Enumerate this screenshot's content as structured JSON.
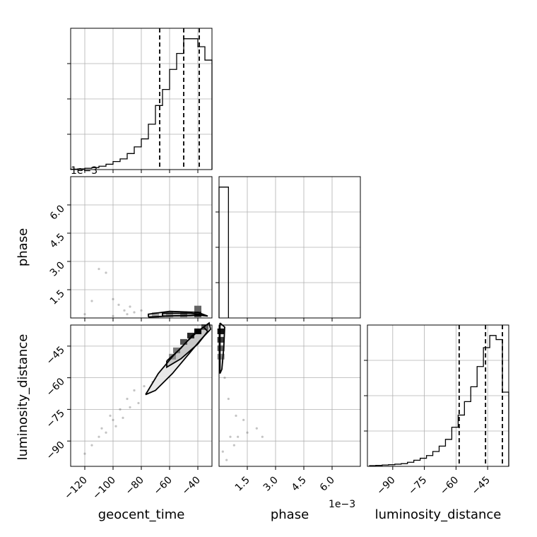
{
  "chart_data": {
    "type": "corner",
    "parameters": [
      "geocent_time",
      "phase",
      "luminosity_distance"
    ],
    "offset_label": "1e−3",
    "grid": true,
    "axes": {
      "geocent_time": {
        "range": [
          -130,
          -30
        ],
        "ticks": [
          -120,
          -100,
          -80,
          -60,
          -40
        ],
        "tick_labels": [
          "−120",
          "−100",
          "−80",
          "−60",
          "−40"
        ]
      },
      "phase": {
        "range": [
          0,
          7.5
        ],
        "ticks": [
          1.5,
          3.0,
          4.5,
          6.0
        ],
        "tick_labels": [
          "1.5",
          "3.0",
          "4.5",
          "6.0"
        ]
      },
      "luminosity_distance": {
        "range": [
          -102,
          -35
        ],
        "ticks": [
          -90,
          -75,
          -60,
          -45
        ],
        "tick_labels": [
          "−90",
          "−75",
          "−60",
          "−45"
        ]
      }
    },
    "histograms": {
      "geocent_time": {
        "bin_edges": [
          -130,
          -125,
          -120,
          -115,
          -110,
          -105,
          -100,
          -95,
          -90,
          -85,
          -80,
          -75,
          -70,
          -65,
          -60,
          -55,
          -50,
          -45,
          -40,
          -35,
          -30
        ],
        "counts": [
          0.3,
          0.5,
          1,
          1.5,
          2.5,
          4,
          6,
          8,
          12,
          17,
          23,
          34,
          48,
          60,
          75,
          87,
          98,
          98,
          92,
          82
        ],
        "quantiles": [
          -67,
          -50,
          -39
        ]
      },
      "phase": {
        "bin_edges": [
          0,
          0.5
        ],
        "counts": [
          100
        ],
        "quantiles": []
      },
      "luminosity_distance": {
        "bin_edges": [
          -101,
          -98,
          -95,
          -92,
          -89,
          -86,
          -83,
          -80,
          -77,
          -74,
          -71,
          -68,
          -65,
          -62,
          -59,
          -56,
          -53,
          -50,
          -47,
          -44,
          -41,
          -38,
          -35
        ],
        "counts": [
          0.5,
          0.7,
          1,
          1.2,
          1.6,
          2,
          3,
          4.5,
          6,
          8,
          11,
          15,
          20,
          29,
          38,
          48,
          59,
          74,
          88,
          97,
          94,
          55
        ],
        "quantiles": [
          -58.5,
          -46,
          -38
        ]
      }
    },
    "joint": {
      "geocent_time_vs_phase": {
        "density_cells": [
          [
            -60,
            0.2,
            0.3
          ],
          [
            -50,
            0.2,
            0.5
          ],
          [
            -40,
            0.2,
            0.8
          ],
          [
            -40,
            0.5,
            0.5
          ],
          [
            -70,
            0.15,
            0.2
          ]
        ],
        "contours": [
          [
            [
              -75,
              0.05
            ],
            [
              -60,
              0.1
            ],
            [
              -40,
              0.15
            ],
            [
              -33,
              0.1
            ],
            [
              -40,
              0.3
            ],
            [
              -60,
              0.35
            ],
            [
              -75,
              0.2
            ],
            [
              -75,
              0.05
            ]
          ],
          [
            [
              -65,
              0.1
            ],
            [
              -45,
              0.12
            ],
            [
              -36,
              0.15
            ],
            [
              -45,
              0.25
            ],
            [
              -65,
              0.25
            ],
            [
              -65,
              0.1
            ]
          ]
        ],
        "samples": [
          [
            -110,
            2.6
          ],
          [
            -105,
            2.4
          ],
          [
            -100,
            1.0
          ],
          [
            -96,
            0.7
          ],
          [
            -115,
            0.9
          ],
          [
            -92,
            0.4
          ],
          [
            -88,
            0.6
          ],
          [
            -85,
            0.3
          ],
          [
            -80,
            0.4
          ],
          [
            -120,
            0.2
          ],
          [
            -100,
            0.1
          ],
          [
            -90,
            0.2
          ],
          [
            -70,
            0.1
          ]
        ]
      },
      "geocent_time_vs_luminosity_distance": {
        "density_cells": [
          [
            -40,
            -38,
            1.0
          ],
          [
            -45,
            -40,
            0.8
          ],
          [
            -50,
            -43,
            0.6
          ],
          [
            -55,
            -47,
            0.4
          ],
          [
            -58,
            -50,
            0.3
          ],
          [
            -35,
            -36,
            0.5
          ]
        ],
        "contours": [
          [
            [
              -77,
              -68
            ],
            [
              -68,
              -58
            ],
            [
              -58,
              -50
            ],
            [
              -48,
              -43
            ],
            [
              -40,
              -38
            ],
            [
              -32,
              -34
            ],
            [
              -31,
              -37
            ],
            [
              -38,
              -42
            ],
            [
              -48,
              -50
            ],
            [
              -58,
              -58
            ],
            [
              -70,
              -66
            ],
            [
              -77,
              -68
            ]
          ],
          [
            [
              -62,
              -52
            ],
            [
              -52,
              -46
            ],
            [
              -44,
              -40
            ],
            [
              -36,
              -36
            ],
            [
              -33,
              -38
            ],
            [
              -40,
              -44
            ],
            [
              -52,
              -51
            ],
            [
              -62,
              -55
            ],
            [
              -62,
              -52
            ]
          ]
        ],
        "samples": [
          [
            -85,
            -66
          ],
          [
            -90,
            -70
          ],
          [
            -95,
            -75
          ],
          [
            -100,
            -80
          ],
          [
            -105,
            -86
          ],
          [
            -110,
            -88
          ],
          [
            -115,
            -92
          ],
          [
            -120,
            -96
          ],
          [
            -82,
            -72
          ],
          [
            -88,
            -74
          ],
          [
            -93,
            -79
          ],
          [
            -98,
            -83
          ],
          [
            -78,
            -64
          ],
          [
            -72,
            -62
          ],
          [
            -102,
            -78
          ],
          [
            -108,
            -84
          ]
        ]
      },
      "phase_vs_luminosity_distance": {
        "density_cells": [
          [
            0.1,
            -38,
            0.9
          ],
          [
            0.1,
            -42,
            0.7
          ],
          [
            0.1,
            -46,
            0.5
          ],
          [
            0.1,
            -50,
            0.3
          ]
        ],
        "contours": [
          [
            [
              0.05,
              -34
            ],
            [
              0.3,
              -36
            ],
            [
              0.25,
              -46
            ],
            [
              0.15,
              -56
            ],
            [
              0.05,
              -58
            ],
            [
              0.05,
              -34
            ]
          ]
        ],
        "samples": [
          [
            0.3,
            -60
          ],
          [
            0.5,
            -70
          ],
          [
            0.6,
            -88
          ],
          [
            1.0,
            -88
          ],
          [
            1.3,
            -80
          ],
          [
            2.0,
            -84
          ],
          [
            2.3,
            -88
          ],
          [
            0.2,
            -95
          ],
          [
            0.4,
            -99
          ],
          [
            0.8,
            -92
          ],
          [
            1.5,
            -86
          ],
          [
            0.9,
            -78
          ]
        ]
      }
    }
  }
}
